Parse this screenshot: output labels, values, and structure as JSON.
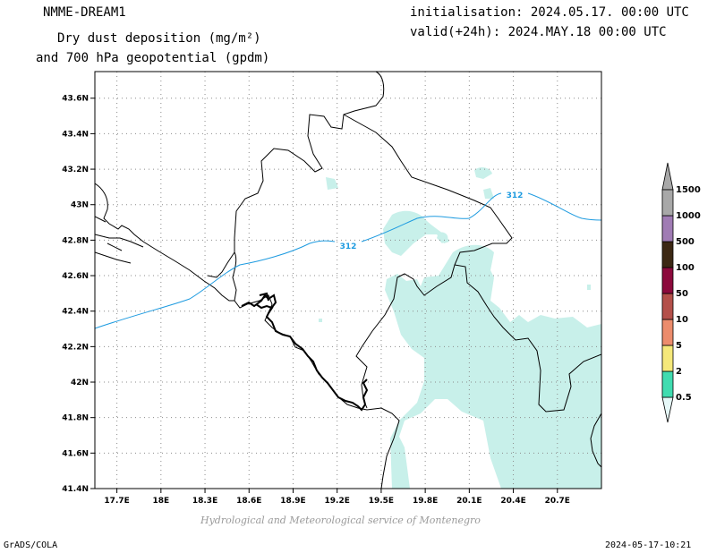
{
  "header": {
    "model": "NMME-DREAM1",
    "field_line1": "Dry dust deposition (mg/m²)",
    "field_line2": "and 700 hPa geopotential (gpdm)",
    "init": "initialisation: 2024.05.17. 00:00 UTC",
    "valid": "valid(+24h): 2024.MAY.18 00:00 UTC"
  },
  "footer": {
    "credit": "Hydrological and Meteorological service of Montenegro",
    "software": "GrADS/COLA",
    "timestamp": "2024-05-17-10:21"
  },
  "map": {
    "lon_range": [
      17.55,
      21.0
    ],
    "lat_range": [
      41.4,
      43.75
    ],
    "x_ticks": [
      {
        "value": 17.7,
        "label": "17.7E"
      },
      {
        "value": 18.0,
        "label": "18E"
      },
      {
        "value": 18.3,
        "label": "18.3E"
      },
      {
        "value": 18.6,
        "label": "18.6E"
      },
      {
        "value": 18.9,
        "label": "18.9E"
      },
      {
        "value": 19.2,
        "label": "19.2E"
      },
      {
        "value": 19.5,
        "label": "19.5E"
      },
      {
        "value": 19.8,
        "label": "19.8E"
      },
      {
        "value": 20.1,
        "label": "20.1E"
      },
      {
        "value": 20.4,
        "label": "20.4E"
      },
      {
        "value": 20.7,
        "label": "20.7E"
      }
    ],
    "y_ticks": [
      {
        "value": 41.4,
        "label": "41.4N"
      },
      {
        "value": 41.6,
        "label": "41.6N"
      },
      {
        "value": 41.8,
        "label": "41.8N"
      },
      {
        "value": 42.0,
        "label": "42N"
      },
      {
        "value": 42.2,
        "label": "42.2N"
      },
      {
        "value": 42.4,
        "label": "42.4N"
      },
      {
        "value": 42.6,
        "label": "42.6N"
      },
      {
        "value": 42.8,
        "label": "42.8N"
      },
      {
        "value": 43.0,
        "label": "43N"
      },
      {
        "value": 43.2,
        "label": "43.2N"
      },
      {
        "value": 43.4,
        "label": "43.4N"
      },
      {
        "value": 43.6,
        "label": "43.6N"
      }
    ],
    "grid": true,
    "contour_label": "312",
    "contour_color": "#1e9be0",
    "dust_color": "#c8f0ea",
    "border_color": "#000000"
  },
  "legend": {
    "placement": "right",
    "levels": [
      {
        "label": "0.5",
        "color": "#e6f8f8"
      },
      {
        "label": "2",
        "color": "#40dcb0"
      },
      {
        "label": "5",
        "color": "#f5e87a"
      },
      {
        "label": "10",
        "color": "#ec8c6c"
      },
      {
        "label": "50",
        "color": "#b4504a"
      },
      {
        "label": "100",
        "color": "#8c0a3c"
      },
      {
        "label": "500",
        "color": "#3c2814"
      },
      {
        "label": "1000",
        "color": "#a07cb4"
      },
      {
        "label": "1500",
        "color": "#a8a8a8"
      }
    ]
  }
}
